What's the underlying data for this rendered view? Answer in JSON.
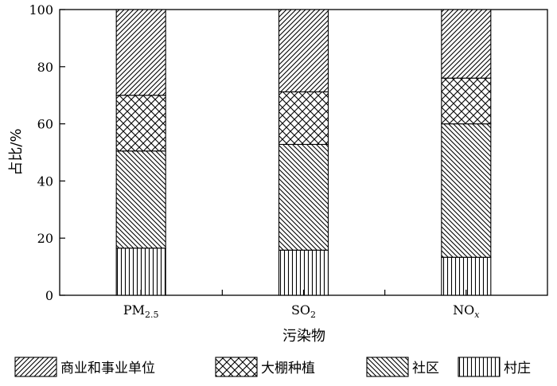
{
  "chart_data": {
    "type": "bar",
    "stacked": true,
    "categories": [
      {
        "label": "PM",
        "sub": "2.5",
        "sub_italic": false
      },
      {
        "label": "SO",
        "sub": "2",
        "sub_italic": false
      },
      {
        "label": "NO",
        "sub": "x",
        "sub_italic": true
      }
    ],
    "series": [
      {
        "name": "村庄",
        "pattern": "vertical",
        "values": [
          16.5,
          15.8,
          13.3
        ]
      },
      {
        "name": "社区",
        "pattern": "backslash",
        "values": [
          34.0,
          37.0,
          46.7
        ]
      },
      {
        "name": "大棚种植",
        "pattern": "crosshatch",
        "values": [
          19.5,
          18.4,
          16.0
        ]
      },
      {
        "name": "商业和事业单位",
        "pattern": "slash",
        "values": [
          30.0,
          28.8,
          24.0
        ]
      }
    ],
    "legend_order": [
      3,
      2,
      1,
      0
    ],
    "xlabel": "污染物",
    "ylabel": "占比/%",
    "ylim": [
      0,
      100
    ],
    "yticks": [
      0,
      20,
      40,
      60,
      80,
      100
    ],
    "grid": false,
    "legend_position": "bottom",
    "colors": {
      "stroke": "#000000",
      "background": "#ffffff"
    }
  }
}
